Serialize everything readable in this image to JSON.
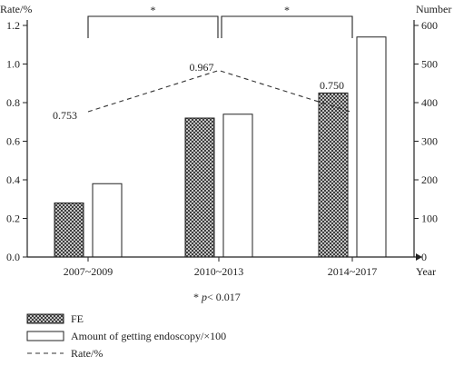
{
  "chart_data": {
    "type": "bar",
    "categories": [
      "2007~2009",
      "2010~2013",
      "2014~2017"
    ],
    "series": [
      {
        "name": "FE",
        "axis": "left",
        "values": [
          0.28,
          0.72,
          0.85
        ],
        "pattern": "crosshatch"
      },
      {
        "name": "Amount of getting endoscopy/×100",
        "axis": "left",
        "values": [
          0.38,
          0.74,
          1.14
        ],
        "pattern": "white"
      },
      {
        "name": "Rate/%",
        "type": "line",
        "style": "dashed",
        "values": [
          0.753,
          0.967,
          0.75
        ],
        "labels": [
          "0.753",
          "0.967",
          "0.750"
        ]
      }
    ],
    "y_left": {
      "label": "Rate/%",
      "range": [
        0,
        1.2
      ],
      "ticks": [
        {
          "v": 0,
          "t": "0.0"
        },
        {
          "v": 0.2,
          "t": "0.2"
        },
        {
          "v": 0.4,
          "t": "0.4"
        },
        {
          "v": 0.6,
          "t": "0.6"
        },
        {
          "v": 0.8,
          "t": "0.8"
        },
        {
          "v": 1.0,
          "t": "1.0"
        },
        {
          "v": 1.2,
          "t": "1.2"
        }
      ]
    },
    "y_right": {
      "label": "Number",
      "range": [
        0,
        600
      ],
      "ticks": [
        {
          "v": 0,
          "t": "0"
        },
        {
          "v": 100,
          "t": "100"
        },
        {
          "v": 200,
          "t": "200"
        },
        {
          "v": 300,
          "t": "300"
        },
        {
          "v": 400,
          "t": "400"
        },
        {
          "v": 500,
          "t": "500"
        },
        {
          "v": 600,
          "t": "600"
        }
      ]
    },
    "x_label": "Year",
    "significance": {
      "brackets": [
        {
          "from": "2007~2009",
          "to": "2010~2013",
          "mark": "*"
        },
        {
          "from": "2010~2013",
          "to": "2014~2017",
          "mark": "*"
        }
      ],
      "note_star": "* ",
      "note_p": "p",
      "note_rest": "< 0.017"
    },
    "legend": {
      "placement": "bottom-left"
    }
  }
}
